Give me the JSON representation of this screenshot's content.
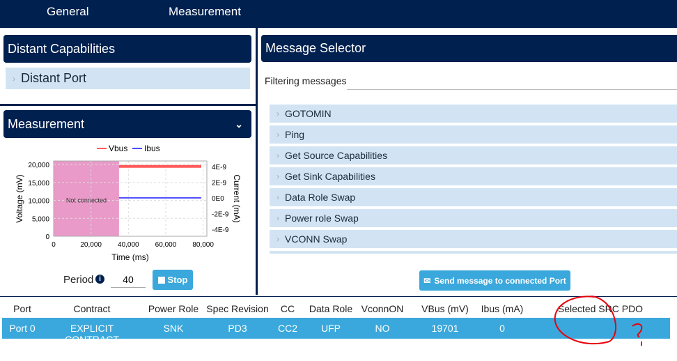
{
  "nav": {
    "tabs": [
      "General",
      "Measurement"
    ]
  },
  "distant": {
    "title": "Distant Capabilities",
    "port": "Distant Port"
  },
  "measurement": {
    "title": "Measurement",
    "period_label": "Period",
    "period_value": "40",
    "stop_label": "Stop"
  },
  "messages": {
    "title": "Message Selector",
    "filter_label": "Filtering messages",
    "filter_value": "",
    "items": [
      "GOTOMIN",
      "Ping",
      "Get Source Capabilities",
      "Get Sink Capabilities",
      "Data Role Swap",
      "Power role Swap",
      "VCONN Swap"
    ],
    "send_label": "Send message to connected Port"
  },
  "table": {
    "headers": [
      "Port",
      "Contract",
      "Power Role",
      "Spec Revision",
      "CC",
      "Data Role",
      "VconnON",
      "VBus (mV)",
      "Ibus (mA)",
      "Selected SRC PDO"
    ],
    "rows": [
      [
        "Port 0",
        "EXPLICIT CONTRACT",
        "SNK",
        "PD3",
        "CC2",
        "UFP",
        "NO",
        "19701",
        "0",
        ""
      ]
    ]
  },
  "annotation_color": "#e8000b",
  "chart_data": {
    "type": "line",
    "xlabel": "Time (ms)",
    "ylabel": "Voltage (mV)",
    "y2label": "Current (mA)",
    "xlim": [
      0,
      82000
    ],
    "ylim": [
      0,
      21000
    ],
    "y2lim": [
      -4.9e-09,
      4.7e-09
    ],
    "xticks": [
      "0",
      "20,000",
      "40,000",
      "60,000",
      "80,000"
    ],
    "xtick_values": [
      0,
      20000,
      40000,
      60000,
      80000
    ],
    "yticks": [
      "0",
      "5,000",
      "10,000",
      "15,000",
      "20,000"
    ],
    "ytick_values": [
      0,
      5000,
      10000,
      15000,
      20000
    ],
    "y2ticks": [
      "-4E-9",
      "-2E-9",
      "0E0",
      "2E-9",
      "4E-9"
    ],
    "y2tick_values": [
      -4e-09,
      -2e-09,
      0,
      2e-09,
      4e-09
    ],
    "grid": true,
    "legend": "top",
    "region": {
      "label": "Not connected",
      "x": [
        0,
        35000
      ],
      "color": "#e99ac8"
    },
    "series": [
      {
        "name": "Vbus",
        "axis": "left",
        "color": "#ff5a5a",
        "x": [
          35000,
          79000
        ],
        "y": [
          19500,
          19500
        ]
      },
      {
        "name": "Ibus",
        "axis": "right",
        "color": "#4a4aff",
        "x": [
          35000,
          79000
        ],
        "y": [
          0,
          0
        ]
      }
    ]
  }
}
